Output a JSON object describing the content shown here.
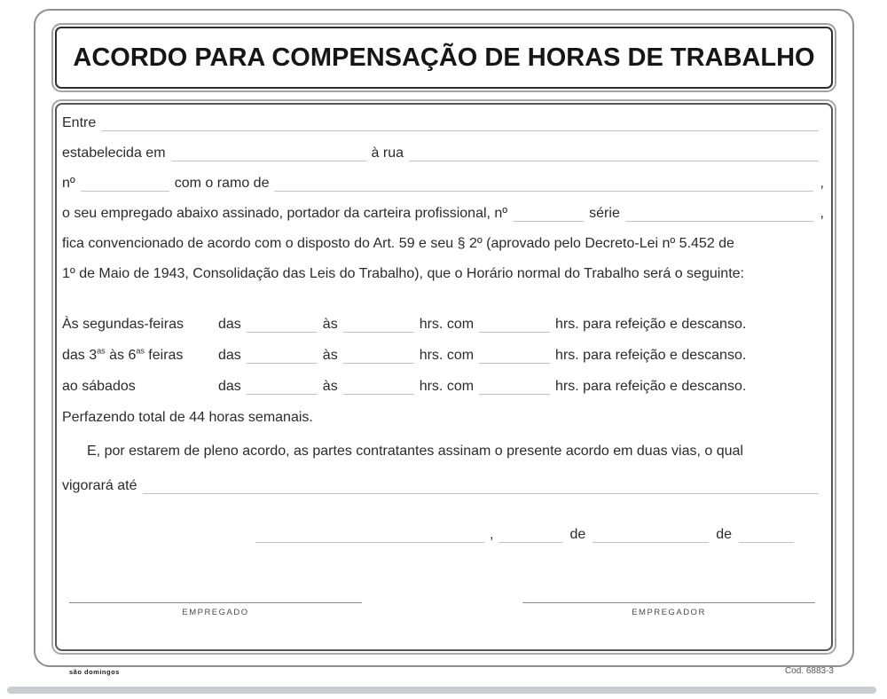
{
  "title": "ACORDO PARA COMPENSAÇÃO DE HORAS DE TRABALHO",
  "intro": {
    "entre_label": "Entre",
    "estabelecida_label": "estabelecida em",
    "a_rua_label": "à rua",
    "no_label": "nº",
    "ramo_label": "com o ramo de",
    "comma": ",",
    "empregado_line_label": "o seu empregado abaixo assinado, portador da carteira profissional, nº",
    "serie_label": "série",
    "clause_line1": "fica convencionado de acordo com o disposto do Art. 59 e seu § 2º (aprovado pelo Decreto-Lei nº 5.452 de",
    "clause_line2": "1º de Maio de 1943, Consolidação das Leis do Trabalho), que o Horário normal do Trabalho será o seguinte:"
  },
  "schedule": {
    "das_label": "das",
    "as_label": "às",
    "hrs_com_label": "hrs. com",
    "suffix_label": "hrs. para refeição e descanso.",
    "rows": [
      {
        "label": "Às segundas-feiras"
      },
      {
        "label_pre": "das 3",
        "label_sup1": "as",
        "label_mid": " às 6",
        "label_sup2": "as",
        "label_post": " feiras"
      },
      {
        "label": "ao sábados"
      }
    ],
    "total_label": "Perfazendo total de 44 horas semanais."
  },
  "closing": {
    "paragraph": "E, por estarem de pleno acordo, as partes contratantes assinam o presente acordo em duas vias, o qual",
    "vigorara_label": "vigorará até"
  },
  "date_line": {
    "comma": ",",
    "de1": "de",
    "de2": "de"
  },
  "signatures": {
    "employee_label": "EMPREGADO",
    "employer_label": "EMPREGADOR"
  },
  "footer": {
    "brand": "são domingos",
    "code": "Cod. 6883-3"
  },
  "colors": {
    "ink": "#2b2b2b",
    "blank_line": "#c3c3c3",
    "border_dark": "#2e2e2e"
  }
}
